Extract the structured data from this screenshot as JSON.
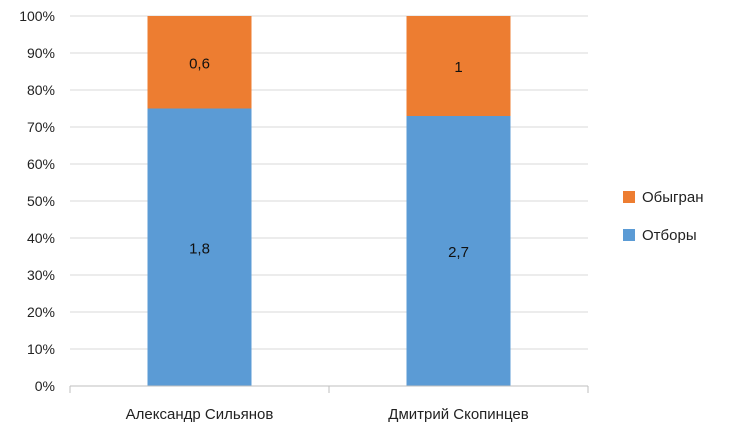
{
  "chart_data": {
    "type": "bar",
    "stacked": true,
    "normalized": true,
    "categories": [
      "Александр Сильянов",
      "Дмитрий Скопинцев"
    ],
    "series": [
      {
        "name": "Отборы",
        "values": [
          1.8,
          2.7
        ],
        "labels": [
          "1,8",
          "2,7"
        ],
        "color": "#5b9bd5"
      },
      {
        "name": "Обыгран",
        "values": [
          0.6,
          1
        ],
        "labels": [
          "0,6",
          "1"
        ],
        "color": "#ed7d31"
      }
    ],
    "ylim": [
      0,
      100
    ],
    "yticks": [
      "0%",
      "10%",
      "20%",
      "30%",
      "40%",
      "50%",
      "60%",
      "70%",
      "80%",
      "90%",
      "100%"
    ],
    "grid": true,
    "legend_position": "right",
    "title": "",
    "xlabel": "",
    "ylabel": ""
  }
}
